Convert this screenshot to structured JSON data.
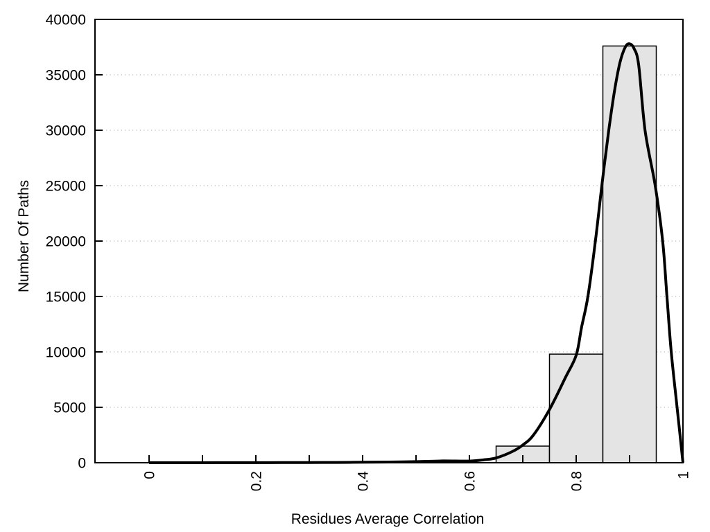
{
  "figure": {
    "background": "#ffffff"
  },
  "chart_data": {
    "type": "bar",
    "subtype": "histogram_with_density_curve",
    "title": "",
    "xlabel": "Residues Average Correlation",
    "ylabel": "Number Of Paths",
    "xlim": [
      -0.1013,
      1.0
    ],
    "ylim": [
      0,
      40000
    ],
    "grid": {
      "horizontal": true,
      "vertical": false,
      "style": "dotted",
      "legend": "none"
    },
    "x_ticks": {
      "positions": [
        0,
        0.1,
        0.2,
        0.3,
        0.4,
        0.5,
        0.6,
        0.7,
        0.8,
        0.9,
        1.0
      ],
      "labels": [
        "0",
        "",
        "0.2",
        "",
        "0.4",
        "",
        "0.6",
        "",
        "0.8",
        "",
        "1"
      ]
    },
    "y_ticks": {
      "positions": [
        0,
        5000,
        10000,
        15000,
        20000,
        25000,
        30000,
        35000,
        40000
      ],
      "labels": [
        "0",
        "5000",
        "10000",
        "15000",
        "20000",
        "25000",
        "30000",
        "35000",
        "40000"
      ]
    },
    "bars": [
      {
        "bin_start": 0.65,
        "bin_end": 0.75,
        "count": 1500
      },
      {
        "bin_start": 0.75,
        "bin_end": 0.85,
        "count": 9800
      },
      {
        "bin_start": 0.85,
        "bin_end": 0.95,
        "count": 37600
      }
    ],
    "curve": {
      "x": [
        0.0,
        0.05,
        0.1,
        0.15,
        0.2,
        0.25,
        0.3,
        0.35,
        0.4,
        0.45,
        0.5,
        0.55,
        0.6,
        0.63,
        0.65,
        0.68,
        0.7,
        0.72,
        0.75,
        0.78,
        0.8,
        0.81,
        0.822,
        0.836,
        0.848,
        0.861,
        0.872,
        0.882,
        0.892,
        0.9,
        0.908,
        0.917,
        0.929,
        0.948,
        0.962,
        0.97,
        0.978,
        0.989,
        1.0
      ],
      "y": [
        0,
        0,
        3,
        5,
        8,
        12,
        18,
        28,
        42,
        65,
        100,
        160,
        150,
        280,
        430,
        1000,
        1600,
        2500,
        4800,
        7700,
        9700,
        12200,
        15000,
        20000,
        25000,
        30000,
        33600,
        36100,
        37500,
        37800,
        37400,
        35900,
        30000,
        25000,
        20000,
        15000,
        10000,
        5000,
        0
      ]
    },
    "colors": {
      "bar_fill": "#e4e4e4",
      "bar_stroke": "#000000",
      "curve": "#000000",
      "grid": "#b8b8b8",
      "axis": "#000000",
      "background": "#ffffff"
    }
  }
}
